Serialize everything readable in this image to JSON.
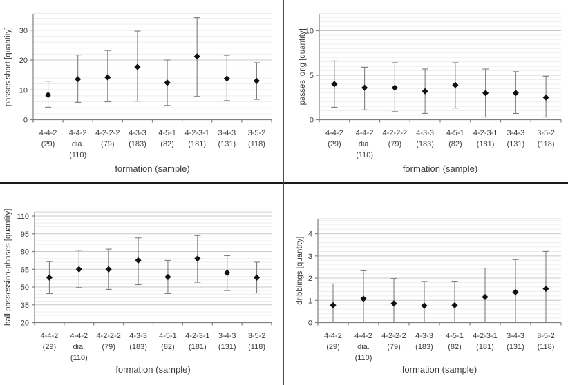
{
  "page": {
    "background": "#ffffff"
  },
  "style": {
    "marker_color": "#111111",
    "error_bar_color": "#7f7f7f",
    "axis_color": "#808080",
    "gridline_major_color": "#c8c8c8",
    "gridline_minor_color": "#ededed",
    "plot_top_edge_color": "#d9d9d9",
    "text_color": "#3d3d3d",
    "divider_vertical_color": "#4f4f4f",
    "divider_horizontal_color": "#1a1a1a"
  },
  "chart_data": [
    {
      "id": "passes-short",
      "type": "scatter",
      "title": "",
      "xlabel": "formation (sample)",
      "ylabel": "passes short [quantity]",
      "ylim": [
        0,
        35.5
      ],
      "yticks": [
        0,
        10,
        20,
        30
      ],
      "minor_gridline_unit": 2,
      "grid": true,
      "legend": "none",
      "marker": "diamond",
      "categories": [
        [
          "4-4-2",
          "(29)"
        ],
        [
          "4-4-2",
          "dia.",
          "(110)"
        ],
        [
          "4-2-2-2",
          "(79)"
        ],
        [
          "4-3-3",
          "(183)"
        ],
        [
          "4-5-1",
          "(82)"
        ],
        [
          "4-2-3-1",
          "(181)"
        ],
        [
          "3-4-3",
          "(131)"
        ],
        [
          "3-5-2",
          "(118)"
        ]
      ],
      "means": [
        8.3,
        13.6,
        14.2,
        17.7,
        12.4,
        21.2,
        13.8,
        13.0
      ],
      "error_low": [
        4.2,
        5.8,
        6.0,
        6.2,
        4.8,
        7.8,
        6.4,
        6.8
      ],
      "error_high": [
        12.9,
        21.7,
        23.2,
        29.7,
        20.0,
        34.2,
        21.6,
        19.1
      ]
    },
    {
      "id": "passes-long",
      "type": "scatter",
      "title": "",
      "xlabel": "formation (sample)",
      "ylabel": "passes long [quantity]",
      "ylim": [
        0,
        11.9
      ],
      "yticks": [
        0,
        5,
        10
      ],
      "minor_gridline_unit": 0.5,
      "grid": true,
      "legend": "none",
      "marker": "diamond",
      "categories": [
        [
          "4-4-2",
          "(29)"
        ],
        [
          "4-4-2",
          "dia.",
          "(110)"
        ],
        [
          "4-2-2-2",
          "(79)"
        ],
        [
          "4-3-3",
          "(183)"
        ],
        [
          "4-5-1",
          "(82)"
        ],
        [
          "4-2-3-1",
          "(181)"
        ],
        [
          "3-4-3",
          "(131)"
        ],
        [
          "3-5-2",
          "(118)"
        ]
      ],
      "means": [
        4.0,
        3.6,
        3.6,
        3.2,
        3.9,
        3.0,
        3.0,
        2.5
      ],
      "error_low": [
        1.4,
        1.1,
        0.9,
        0.7,
        1.3,
        0.3,
        0.7,
        0.3
      ],
      "error_high": [
        6.6,
        5.9,
        6.4,
        5.7,
        6.4,
        5.7,
        5.4,
        4.9
      ]
    },
    {
      "id": "ball-possession-phases",
      "type": "scatter",
      "title": "",
      "xlabel": "formation (sample)",
      "ylabel": "ball possession-phases [quantity]",
      "ylim": [
        20,
        113.5
      ],
      "yticks": [
        20,
        35,
        50,
        65,
        80,
        95,
        110
      ],
      "minor_gridline_unit": 3,
      "grid": true,
      "legend": "none",
      "marker": "diamond",
      "categories": [
        [
          "4-4-2",
          "(29)"
        ],
        [
          "4-4-2",
          "dia.",
          "(110)"
        ],
        [
          "4-2-2-2",
          "(79)"
        ],
        [
          "4-3-3",
          "(183)"
        ],
        [
          "4-5-1",
          "(82)"
        ],
        [
          "4-2-3-1",
          "(181)"
        ],
        [
          "3-4-3",
          "(131)"
        ],
        [
          "3-5-2",
          "(118)"
        ]
      ],
      "means": [
        58,
        65,
        65,
        72.5,
        58.5,
        74,
        62,
        58
      ],
      "error_low": [
        44.5,
        49.5,
        48,
        52,
        44.5,
        54,
        47,
        45
      ],
      "error_high": [
        71.5,
        81,
        82,
        91.5,
        72.5,
        93.5,
        76.5,
        71
      ]
    },
    {
      "id": "dribblings",
      "type": "scatter",
      "title": "",
      "xlabel": "formation (sample)",
      "ylabel": "dribblings [quantity]",
      "ylim": [
        0,
        4.67
      ],
      "yticks": [
        0,
        1,
        2,
        3,
        4
      ],
      "minor_gridline_unit": 0.2,
      "grid": true,
      "legend": "none",
      "marker": "diamond",
      "categories": [
        [
          "4-4-2",
          "(29)"
        ],
        [
          "4-4-2",
          "dia.",
          "(110)"
        ],
        [
          "4-2-2-2",
          "(79)"
        ],
        [
          "4-3-3",
          "(183)"
        ],
        [
          "4-5-1",
          "(82)"
        ],
        [
          "4-2-3-1",
          "(181)"
        ],
        [
          "3-4-3",
          "(131)"
        ],
        [
          "3-5-2",
          "(118)"
        ]
      ],
      "means": [
        0.78,
        1.07,
        0.86,
        0.76,
        0.78,
        1.15,
        1.37,
        1.52
      ],
      "error_low": [
        0,
        0,
        0,
        0,
        0,
        0,
        0,
        0
      ],
      "error_high": [
        1.74,
        2.33,
        1.98,
        1.85,
        1.86,
        2.45,
        2.83,
        3.2
      ]
    }
  ]
}
